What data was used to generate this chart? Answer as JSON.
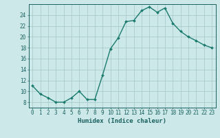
{
  "x": [
    0,
    1,
    2,
    3,
    4,
    5,
    6,
    7,
    8,
    9,
    10,
    11,
    12,
    13,
    14,
    15,
    16,
    17,
    18,
    19,
    20,
    21,
    22,
    23
  ],
  "y": [
    11.0,
    9.5,
    8.8,
    8.0,
    8.0,
    8.8,
    10.0,
    8.5,
    8.5,
    13.0,
    17.8,
    19.8,
    22.8,
    23.0,
    24.8,
    25.5,
    24.5,
    25.3,
    22.5,
    21.0,
    20.0,
    19.3,
    18.5,
    18.0
  ],
  "line_color": "#1a7a6e",
  "marker": "D",
  "marker_size": 2.0,
  "line_width": 1.0,
  "bg_color": "#cce8e8",
  "grid_color": "#aacccc",
  "xlabel": "Humidex (Indice chaleur)",
  "xlim": [
    -0.5,
    23.5
  ],
  "ylim": [
    7,
    26
  ],
  "yticks": [
    8,
    10,
    12,
    14,
    16,
    18,
    20,
    22,
    24
  ],
  "xticks": [
    0,
    1,
    2,
    3,
    4,
    5,
    6,
    7,
    8,
    9,
    10,
    11,
    12,
    13,
    14,
    15,
    16,
    17,
    18,
    19,
    20,
    21,
    22,
    23
  ],
  "tick_color": "#1a6060",
  "label_fontsize": 6.5,
  "tick_fontsize": 5.5
}
